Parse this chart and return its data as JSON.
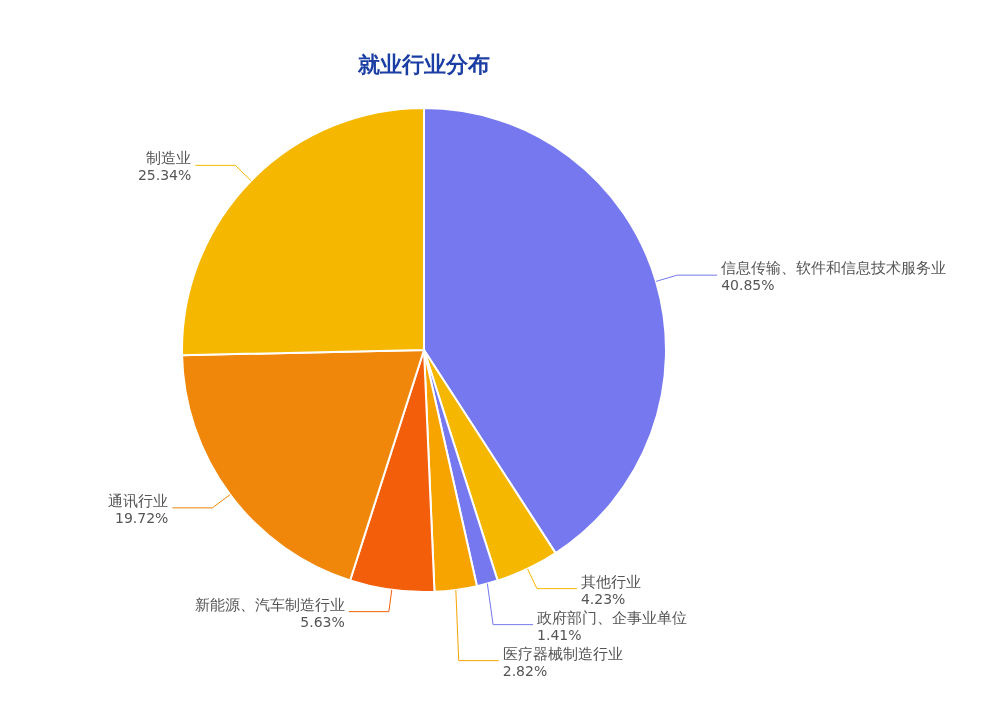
{
  "chart_data": {
    "type": "pie",
    "title": "就业行业分布",
    "categories": [
      "信息传输、软件和信息技术服务业",
      "其他行业",
      "政府部门、企事业单位",
      "医疗器械制造行业",
      "新能源、汽车制造行业",
      "通讯行业",
      "制造业"
    ],
    "values": [
      40.85,
      4.23,
      1.41,
      2.82,
      5.63,
      19.72,
      25.34
    ],
    "value_labels": [
      "40.85%",
      "4.23%",
      "1.41%",
      "2.82%",
      "5.63%",
      "19.72%",
      "25.34%"
    ],
    "colors": [
      "#7578ee",
      "#f5b700",
      "#7578ee",
      "#f7a400",
      "#f25e0a",
      "#f0870a",
      "#f5b700"
    ]
  }
}
